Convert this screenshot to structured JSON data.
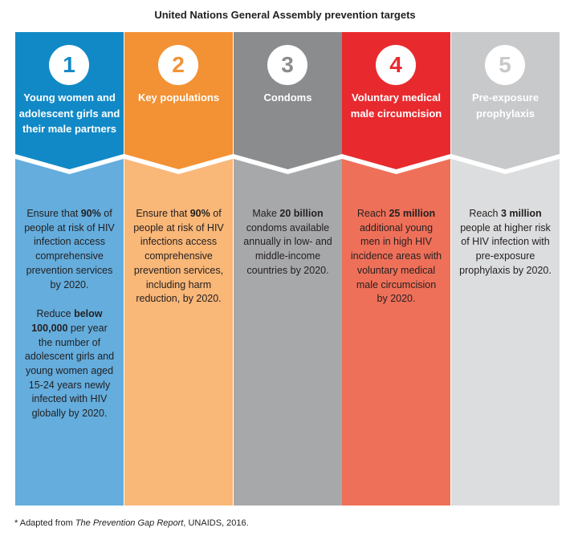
{
  "title": "United Nations General Assembly prevention targets",
  "columns": [
    {
      "number": "1",
      "heading": "Young women and adolescent girls and their male partners",
      "head_color": "#1189c6",
      "body_color": "#64addd",
      "body": [
        [
          {
            "t": "Ensure that ",
            "b": false
          },
          {
            "t": "90%",
            "b": true
          },
          {
            "t": " of people at risk of HIV infection access comprehensive prevention services by 2020.",
            "b": false
          }
        ],
        [
          {
            "t": "Reduce ",
            "b": false
          },
          {
            "t": "below 100,000",
            "b": true
          },
          {
            "t": " per year the number of adolescent girls and young women aged 15-24 years newly infected with HIV globally by 2020.",
            "b": false
          }
        ]
      ]
    },
    {
      "number": "2",
      "heading": "Key populations",
      "head_color": "#f39234",
      "body_color": "#f9b778",
      "body": [
        [
          {
            "t": "Ensure that ",
            "b": false
          },
          {
            "t": "90%",
            "b": true
          },
          {
            "t": " of people at risk of HIV infections access comprehensive prevention services, including harm reduction, by 2020.",
            "b": false
          }
        ]
      ]
    },
    {
      "number": "3",
      "heading": "Condoms",
      "head_color": "#8b8c8e",
      "body_color": "#a7a8aa",
      "body": [
        [
          {
            "t": "Make ",
            "b": false
          },
          {
            "t": "20 billion",
            "b": true
          },
          {
            "t": " condoms available annually in low- and middle-income countries by 2020.",
            "b": false
          }
        ]
      ]
    },
    {
      "number": "4",
      "heading": "Voluntary medical male circumcision",
      "head_color": "#e82a2e",
      "body_color": "#ef7059",
      "body": [
        [
          {
            "t": "Reach ",
            "b": false
          },
          {
            "t": "25 million",
            "b": true
          },
          {
            "t": " additional young men in high HIV incidence areas with voluntary medical male circumcision by 2020.",
            "b": false
          }
        ]
      ]
    },
    {
      "number": "5",
      "heading": "Pre-exposure prophylaxis",
      "head_color": "#c8c9cb",
      "body_color": "#dcddde",
      "body": [
        [
          {
            "t": "Reach ",
            "b": false
          },
          {
            "t": "3 million",
            "b": true
          },
          {
            "t": " people at higher risk of HIV infection with pre-exposure prophylaxis by 2020.",
            "b": false
          }
        ]
      ]
    }
  ],
  "footnote": {
    "prefix": "* Adapted from ",
    "source": "The Prevention Gap Report",
    "suffix": ", UNAIDS, 2016."
  }
}
